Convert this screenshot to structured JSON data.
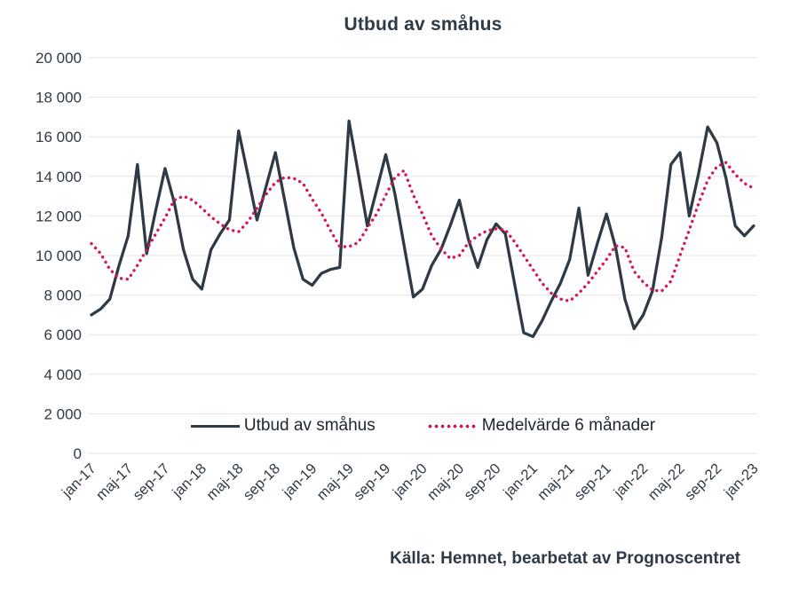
{
  "title": "Utbud av småhus",
  "source": "Källa: Hemnet, bearbetat av Prognoscentret",
  "legend": {
    "series1": "Utbud av småhus",
    "series2": "Medelvärde 6 månader"
  },
  "colors": {
    "supply_line": "#2e3a46",
    "average_line": "#d6155f",
    "gridline": "#e4e4e4",
    "text": "#2e3a46",
    "background": "#ffffff"
  },
  "chart_data": {
    "type": "line",
    "title": "Utbud av småhus",
    "xlabel": "",
    "ylabel": "",
    "ylim": [
      0,
      20000
    ],
    "ytick_step": 2000,
    "grid": true,
    "legend_position": "bottom-center",
    "x_tick_every": 4,
    "x": [
      "jan-17",
      "feb-17",
      "mar-17",
      "apr-17",
      "maj-17",
      "jun-17",
      "jul-17",
      "aug-17",
      "sep-17",
      "okt-17",
      "nov-17",
      "dec-17",
      "jan-18",
      "feb-18",
      "mar-18",
      "apr-18",
      "maj-18",
      "jun-18",
      "jul-18",
      "aug-18",
      "sep-18",
      "okt-18",
      "nov-18",
      "dec-18",
      "jan-19",
      "feb-19",
      "mar-19",
      "apr-19",
      "maj-19",
      "jun-19",
      "jul-19",
      "aug-19",
      "sep-19",
      "okt-19",
      "nov-19",
      "dec-19",
      "jan-20",
      "feb-20",
      "mar-20",
      "apr-20",
      "maj-20",
      "jun-20",
      "jul-20",
      "aug-20",
      "sep-20",
      "okt-20",
      "nov-20",
      "dec-20",
      "jan-21",
      "feb-21",
      "mar-21",
      "apr-21",
      "maj-21",
      "jun-21",
      "jul-21",
      "aug-21",
      "sep-21",
      "okt-21",
      "nov-21",
      "dec-21",
      "jan-22",
      "feb-22",
      "mar-22",
      "apr-22",
      "maj-22",
      "jun-22",
      "jul-22",
      "aug-22",
      "sep-22",
      "okt-22",
      "nov-22",
      "dec-22",
      "jan-23"
    ],
    "x_tick_labels": [
      "jan-17",
      "maj-17",
      "sep-17",
      "jan-18",
      "maj-18",
      "sep-18",
      "jan-19",
      "maj-19",
      "sep-19",
      "jan-20",
      "maj-20",
      "sep-20",
      "jan-21",
      "maj-21",
      "sep-21",
      "jan-22",
      "maj-22",
      "sep-22",
      "jan-23"
    ],
    "series": [
      {
        "name": "Utbud av småhus",
        "style": "solid",
        "color": "#2e3a46",
        "values": [
          7000,
          7300,
          7800,
          9500,
          11000,
          14600,
          10100,
          12300,
          14400,
          12700,
          10300,
          8800,
          8300,
          10300,
          11100,
          11800,
          16300,
          14100,
          11800,
          13500,
          15200,
          12800,
          10400,
          8800,
          8500,
          9100,
          9300,
          9400,
          16800,
          14200,
          11500,
          13300,
          15100,
          13100,
          10500,
          7900,
          8300,
          9500,
          10300,
          11500,
          12800,
          10800,
          9400,
          10800,
          11600,
          11100,
          8600,
          6100,
          5900,
          6700,
          7700,
          8600,
          9800,
          12400,
          9000,
          10600,
          12100,
          10400,
          7800,
          6300,
          7000,
          8200,
          10900,
          14600,
          15200,
          12000,
          14100,
          16500,
          15700,
          13900,
          11500,
          11000,
          11500
        ]
      },
      {
        "name": "Medelvärde 6 månader",
        "style": "dotted",
        "color": "#d6155f",
        "values": [
          10600,
          10100,
          9300,
          8850,
          8800,
          9500,
          10300,
          11100,
          11900,
          12800,
          13000,
          12800,
          12400,
          11950,
          11600,
          11300,
          11200,
          11700,
          12400,
          13100,
          13700,
          13950,
          13900,
          13650,
          12850,
          12150,
          11250,
          10450,
          10450,
          10650,
          11400,
          12100,
          13050,
          13950,
          14300,
          13050,
          12100,
          11000,
          10350,
          9850,
          10000,
          10650,
          11000,
          11250,
          11350,
          11300,
          10700,
          10000,
          9300,
          8600,
          8100,
          7800,
          7700,
          8100,
          8600,
          9200,
          9800,
          10500,
          10400,
          9200,
          8650,
          8250,
          8200,
          8700,
          10000,
          11300,
          12600,
          13800,
          14500,
          14700,
          14100,
          13650,
          13400
        ]
      }
    ]
  }
}
